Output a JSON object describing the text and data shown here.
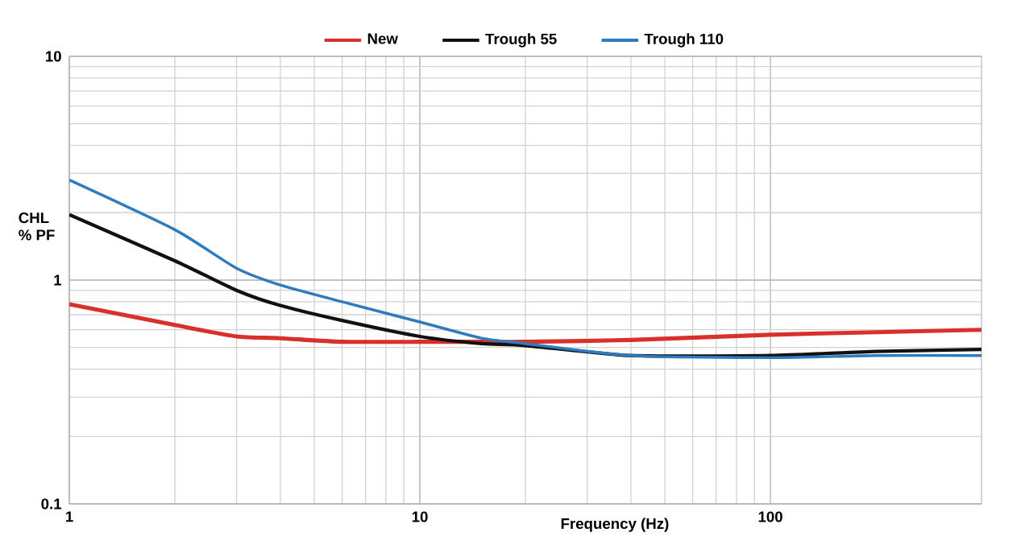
{
  "chart_data": {
    "type": "line",
    "xlabel": "Frequency (Hz)",
    "ylabel": "CHL % PF",
    "log": "xy",
    "grid": true,
    "legend": "top",
    "marker": "none",
    "line_style": "solid",
    "xlim": [
      1,
      400
    ],
    "xticks": [
      1,
      10,
      100
    ],
    "ylim": [
      0.1,
      10
    ],
    "yticks": [
      0.1,
      1,
      10
    ],
    "x": [
      1,
      2,
      3,
      4,
      6,
      10,
      15,
      20,
      40,
      100,
      200,
      400
    ],
    "series": [
      {
        "name": "New",
        "color": "#d9302c",
        "values": [
          0.78,
          0.63,
          0.56,
          0.55,
          0.53,
          0.53,
          0.53,
          0.53,
          0.54,
          0.57,
          0.585,
          0.6
        ]
      },
      {
        "name": "Trough 55",
        "color": "#111111",
        "values": [
          1.96,
          1.22,
          0.9,
          0.77,
          0.66,
          0.56,
          0.52,
          0.51,
          0.46,
          0.46,
          0.48,
          0.49
        ]
      },
      {
        "name": "Trough 110",
        "color": "#2f7bbf",
        "values": [
          2.8,
          1.68,
          1.13,
          0.95,
          0.8,
          0.65,
          0.55,
          0.52,
          0.46,
          0.45,
          0.46,
          0.46
        ]
      }
    ]
  }
}
